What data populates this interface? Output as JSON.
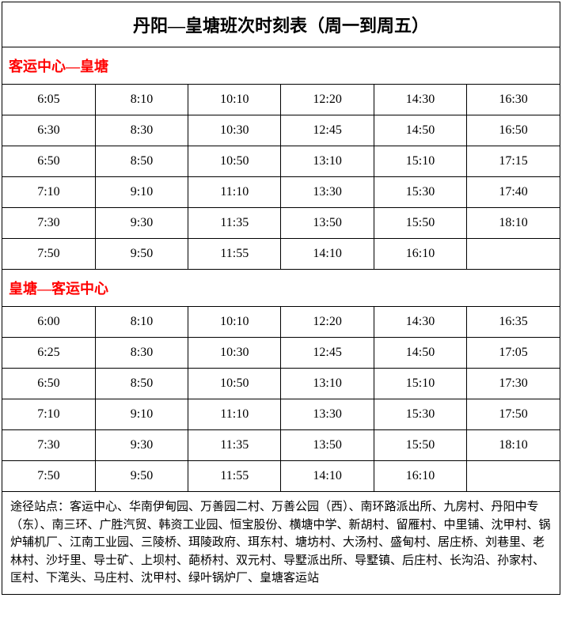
{
  "title": "丹阳—皇塘班次时刻表（周一到周五）",
  "section1": {
    "header": "客运中心—皇塘",
    "rows": [
      [
        "6:05",
        "8:10",
        "10:10",
        "12:20",
        "14:30",
        "16:30"
      ],
      [
        "6:30",
        "8:30",
        "10:30",
        "12:45",
        "14:50",
        "16:50"
      ],
      [
        "6:50",
        "8:50",
        "10:50",
        "13:10",
        "15:10",
        "17:15"
      ],
      [
        "7:10",
        "9:10",
        "11:10",
        "13:30",
        "15:30",
        "17:40"
      ],
      [
        "7:30",
        "9:30",
        "11:35",
        "13:50",
        "15:50",
        "18:10"
      ],
      [
        "7:50",
        "9:50",
        "11:55",
        "14:10",
        "16:10",
        ""
      ]
    ]
  },
  "section2": {
    "header": "皇塘—客运中心",
    "rows": [
      [
        "6:00",
        "8:10",
        "10:10",
        "12:20",
        "14:30",
        "16:35"
      ],
      [
        "6:25",
        "8:30",
        "10:30",
        "12:45",
        "14:50",
        "17:05"
      ],
      [
        "6:50",
        "8:50",
        "10:50",
        "13:10",
        "15:10",
        "17:30"
      ],
      [
        "7:10",
        "9:10",
        "11:10",
        "13:30",
        "15:30",
        "17:50"
      ],
      [
        "7:30",
        "9:30",
        "11:35",
        "13:50",
        "15:50",
        "18:10"
      ],
      [
        "7:50",
        "9:50",
        "11:55",
        "14:10",
        "16:10",
        ""
      ]
    ]
  },
  "footer": "途径站点：客运中心、华南伊甸园、万善园二村、万善公园（西）、南环路派出所、九房村、丹阳中专（东）、南三环、广胜汽贸、韩资工业园、恒宝股份、横塘中学、新胡村、留雁村、中里铺、沈甲村、锅炉辅机厂、江南工业园、三陵桥、珥陵政府、珥东村、塘坊村、大汤村、盛甸村、居庄桥、刘巷里、老林村、沙圩里、导士矿、上坝村、葩桥村、双元村、导墅派出所、导墅镇、后庄村、长沟沿、孙家村、匡村、下滗头、马庄村、沈甲村、绿叶锅炉厂、皇塘客运站"
}
